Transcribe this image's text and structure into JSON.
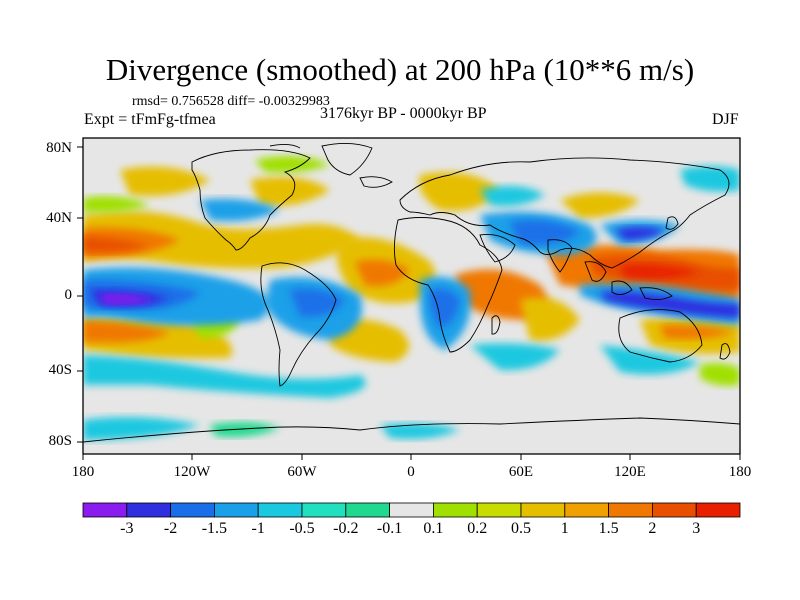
{
  "title": "Divergence (smoothed) at 200 hPa (10**6 m/s)",
  "stats": "rmsd= 0.756528  diff= -0.00329983",
  "experiment": "Expt = tFmFg-tfmea",
  "period": "3176kyr BP - 0000kyr BP",
  "season": "DJF",
  "map": {
    "background_color": "#e6e6e6",
    "coastline_color": "#000000",
    "lat_labels": [
      "80N",
      "40N",
      "0",
      "40S",
      "80S"
    ],
    "lon_labels": [
      "180",
      "120W",
      "60W",
      "0",
      "60E",
      "120E",
      "180"
    ]
  },
  "colorbar": {
    "colors": [
      "#8a1cf0",
      "#2f2fe0",
      "#1a6fe8",
      "#1aa0e8",
      "#1ac8e0",
      "#20e0c0",
      "#20d890",
      "#e6e6e6",
      "#a0e000",
      "#c8dc00",
      "#e6be00",
      "#f0a000",
      "#f07800",
      "#e85000",
      "#e82000"
    ],
    "labels": [
      "-3",
      "-2",
      "-1.5",
      "-1",
      "-0.5",
      "-0.2",
      "-0.1",
      "0.1",
      "0.2",
      "0.5",
      "1",
      "1.5",
      "2",
      "3"
    ]
  }
}
